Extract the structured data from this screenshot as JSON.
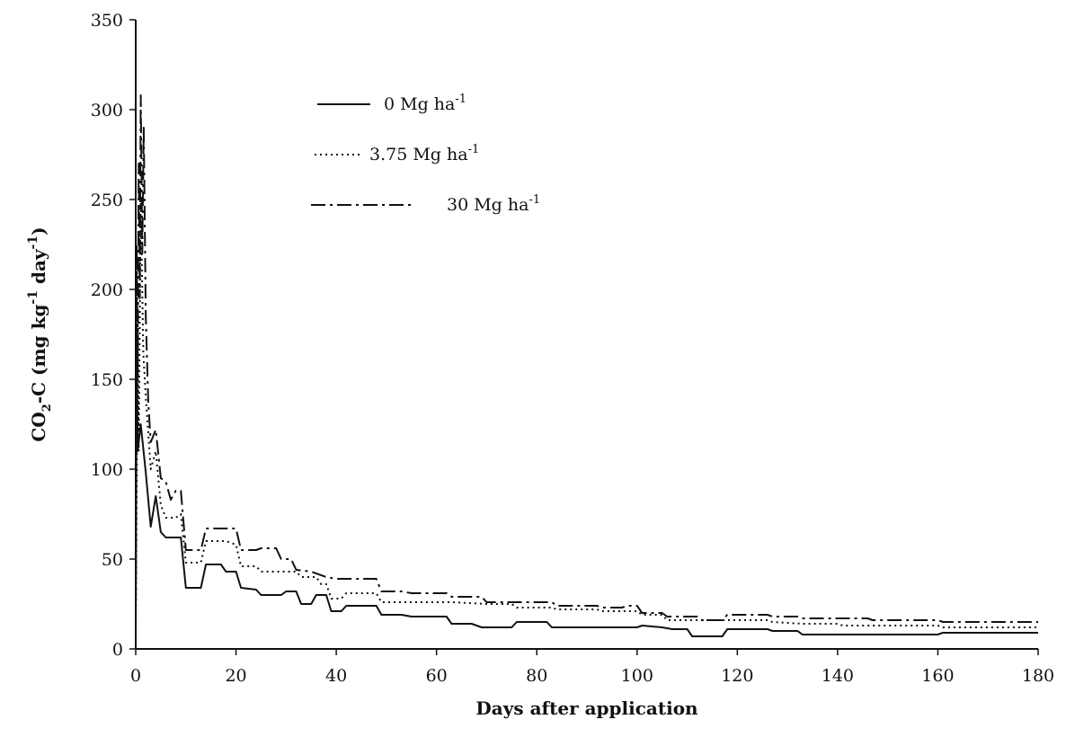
{
  "chart_data": {
    "type": "line",
    "xlabel": "Days after application",
    "ylabel": {
      "main": "CO",
      "sub": "2",
      "rest": "-C (mg kg",
      "sup1": "-1",
      "rest2": " day",
      "sup2": "-1",
      "close": ")"
    },
    "xlim": [
      0,
      180
    ],
    "ylim": [
      0,
      350
    ],
    "xticks": [
      0,
      20,
      40,
      60,
      80,
      100,
      120,
      140,
      160,
      180
    ],
    "yticks": [
      0,
      50,
      100,
      150,
      200,
      250,
      300,
      350
    ],
    "grid": false,
    "legend_position": "top-center",
    "series": [
      {
        "name": "0 Mg ha",
        "name_sup": "-1",
        "style": "solid",
        "points": [
          [
            0,
            12
          ],
          [
            0.2,
            170
          ],
          [
            0.4,
            110
          ],
          [
            1,
            125
          ],
          [
            2,
            98
          ],
          [
            3,
            68
          ],
          [
            4,
            85
          ],
          [
            5,
            65
          ],
          [
            6,
            62
          ],
          [
            9,
            62
          ],
          [
            10,
            34
          ],
          [
            13,
            34
          ],
          [
            14,
            47
          ],
          [
            17,
            47
          ],
          [
            18,
            43
          ],
          [
            20,
            43
          ],
          [
            21,
            34
          ],
          [
            24,
            33
          ],
          [
            25,
            30
          ],
          [
            29,
            30
          ],
          [
            30,
            32
          ],
          [
            32,
            32
          ],
          [
            33,
            25
          ],
          [
            35,
            25
          ],
          [
            36,
            30
          ],
          [
            38,
            30
          ],
          [
            39,
            21
          ],
          [
            41,
            21
          ],
          [
            42,
            24
          ],
          [
            48,
            24
          ],
          [
            49,
            19
          ],
          [
            53,
            19
          ],
          [
            55,
            18
          ],
          [
            62,
            18
          ],
          [
            63,
            14
          ],
          [
            67,
            14
          ],
          [
            69,
            12
          ],
          [
            75,
            12
          ],
          [
            76,
            15
          ],
          [
            82,
            15
          ],
          [
            83,
            12
          ],
          [
            100,
            12
          ],
          [
            101,
            13
          ],
          [
            105,
            12
          ],
          [
            107,
            11
          ],
          [
            110,
            11
          ],
          [
            111,
            7
          ],
          [
            117,
            7
          ],
          [
            118,
            11
          ],
          [
            126,
            11
          ],
          [
            127,
            10
          ],
          [
            132,
            10
          ],
          [
            133,
            8
          ],
          [
            160,
            8
          ],
          [
            161,
            9
          ],
          [
            180,
            9
          ]
        ]
      },
      {
        "name": "3.75 Mg ha",
        "name_sup": "-1",
        "style": "dotted",
        "points": [
          [
            0,
            12
          ],
          [
            0.2,
            95
          ],
          [
            0.4,
            180
          ],
          [
            0.6,
            110
          ],
          [
            1,
            250
          ],
          [
            1.5,
            165
          ],
          [
            2,
            140
          ],
          [
            3,
            100
          ],
          [
            4,
            110
          ],
          [
            5,
            80
          ],
          [
            6,
            73
          ],
          [
            8,
            73
          ],
          [
            9,
            75
          ],
          [
            10,
            48
          ],
          [
            13,
            48
          ],
          [
            14,
            60
          ],
          [
            18,
            60
          ],
          [
            20,
            58
          ],
          [
            21,
            46
          ],
          [
            24,
            46
          ],
          [
            25,
            43
          ],
          [
            29,
            43
          ],
          [
            30,
            43
          ],
          [
            32,
            43
          ],
          [
            33,
            40
          ],
          [
            36,
            40
          ],
          [
            37,
            36
          ],
          [
            38,
            36
          ],
          [
            39,
            28
          ],
          [
            41,
            28
          ],
          [
            42,
            31
          ],
          [
            48,
            31
          ],
          [
            49,
            26
          ],
          [
            55,
            26
          ],
          [
            56,
            26
          ],
          [
            62,
            26
          ],
          [
            63,
            26
          ],
          [
            70,
            25
          ],
          [
            75,
            25
          ],
          [
            76,
            23
          ],
          [
            83,
            23
          ],
          [
            84,
            22
          ],
          [
            92,
            22
          ],
          [
            93,
            21
          ],
          [
            100,
            21
          ],
          [
            101,
            19
          ],
          [
            105,
            19
          ],
          [
            106,
            16
          ],
          [
            112,
            16
          ],
          [
            118,
            16
          ],
          [
            119,
            16
          ],
          [
            126,
            16
          ],
          [
            127,
            15
          ],
          [
            133,
            14
          ],
          [
            140,
            14
          ],
          [
            141,
            13
          ],
          [
            160,
            13
          ],
          [
            161,
            12
          ],
          [
            180,
            12
          ]
        ]
      },
      {
        "name": "30 Mg ha",
        "name_sup": "-1",
        "style": "dashdot",
        "points": [
          [
            0,
            12
          ],
          [
            0.2,
            225
          ],
          [
            0.4,
            150
          ],
          [
            0.6,
            270
          ],
          [
            0.8,
            195
          ],
          [
            1,
            308
          ],
          [
            1.3,
            220
          ],
          [
            1.6,
            290
          ],
          [
            2,
            185
          ],
          [
            2.5,
            138
          ],
          [
            3,
            115
          ],
          [
            4,
            122
          ],
          [
            5,
            95
          ],
          [
            6,
            93
          ],
          [
            7,
            83
          ],
          [
            8,
            88
          ],
          [
            9,
            88
          ],
          [
            10,
            55
          ],
          [
            13,
            55
          ],
          [
            14,
            67
          ],
          [
            19,
            67
          ],
          [
            20,
            67
          ],
          [
            21,
            55
          ],
          [
            24,
            55
          ],
          [
            25,
            56
          ],
          [
            28,
            56
          ],
          [
            29,
            50
          ],
          [
            31,
            50
          ],
          [
            32,
            44
          ],
          [
            35,
            43
          ],
          [
            38,
            40
          ],
          [
            40,
            39
          ],
          [
            48,
            39
          ],
          [
            49,
            32
          ],
          [
            53,
            32
          ],
          [
            55,
            31
          ],
          [
            62,
            31
          ],
          [
            63,
            29
          ],
          [
            69,
            29
          ],
          [
            70,
            26
          ],
          [
            80,
            26
          ],
          [
            83,
            26
          ],
          [
            84,
            24
          ],
          [
            92,
            24
          ],
          [
            93,
            23
          ],
          [
            97,
            23
          ],
          [
            98,
            24
          ],
          [
            100,
            24
          ],
          [
            101,
            20
          ],
          [
            105,
            20
          ],
          [
            106,
            18
          ],
          [
            112,
            18
          ],
          [
            113,
            16
          ],
          [
            117,
            16
          ],
          [
            118,
            19
          ],
          [
            126,
            19
          ],
          [
            127,
            18
          ],
          [
            132,
            18
          ],
          [
            133,
            17
          ],
          [
            146,
            17
          ],
          [
            147,
            16
          ],
          [
            160,
            16
          ],
          [
            161,
            15
          ],
          [
            180,
            15
          ]
        ]
      }
    ]
  }
}
